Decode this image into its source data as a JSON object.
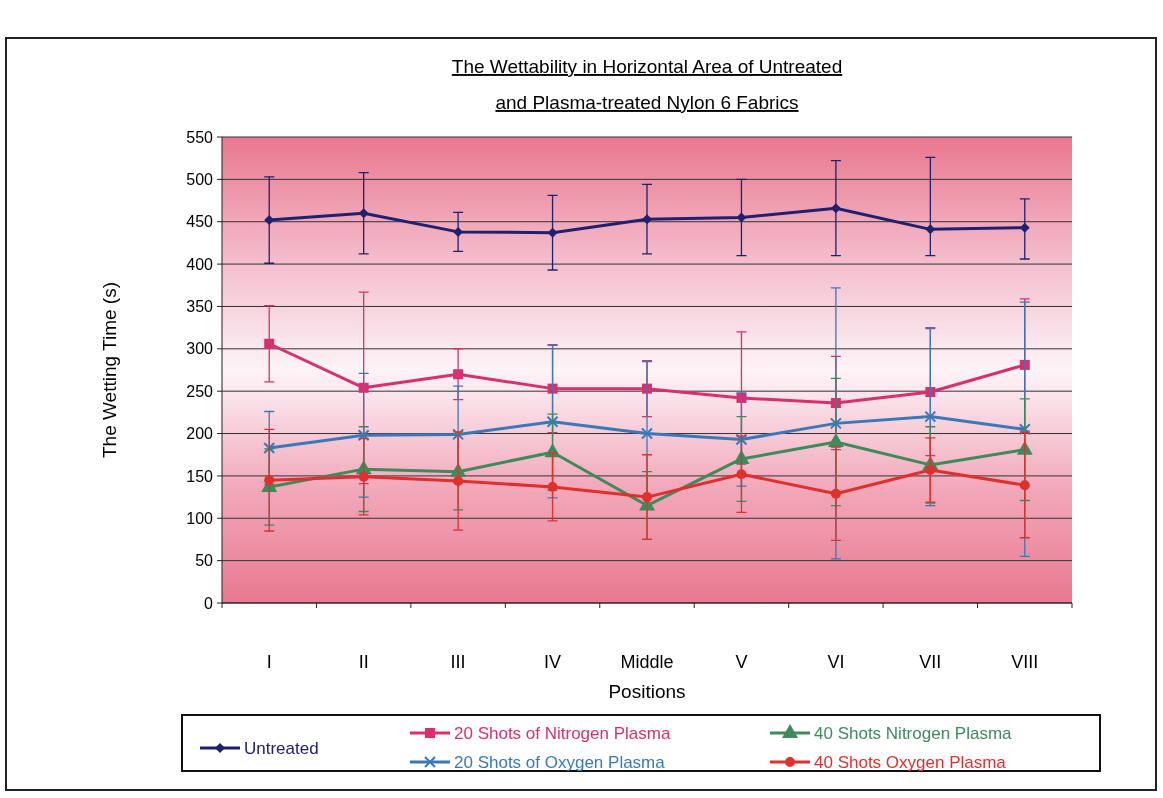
{
  "chart_data": {
    "type": "line",
    "title": "The Wettability in Horizontal Area of Untreated and Plasma-treated Nylon 6 Fabrics",
    "xlabel": "Positions",
    "ylabel": "The Wetting Time (s)",
    "categories": [
      "I",
      "II",
      "III",
      "IV",
      "Middle",
      "V",
      "VI",
      "VII",
      "VIII"
    ],
    "ylim": [
      0,
      550
    ],
    "yticks": [
      0,
      50,
      100,
      150,
      200,
      250,
      300,
      350,
      400,
      450,
      500,
      550
    ],
    "grid": "y",
    "legend": "bottom",
    "series": [
      {
        "name": "Untreated",
        "color": "#1f2070",
        "marker": "diamond",
        "values": [
          452,
          460,
          438,
          437,
          453,
          455,
          466,
          441,
          443
        ],
        "errors": [
          51,
          48,
          23,
          44,
          41,
          45,
          56,
          [
            410,
            526
          ],
          [
            406,
            477
          ]
        ]
      },
      {
        "name": "20 Shots of Nitrogen Plasma",
        "color": "#d8306e",
        "marker": "square",
        "values": [
          306,
          254,
          270,
          253,
          253,
          242,
          236,
          249,
          281
        ],
        "errors": [
          45,
          113,
          30,
          52,
          33,
          78,
          55,
          75,
          78
        ]
      },
      {
        "name": "20 Shots of Oxygen Plasma",
        "color": "#3a78b8",
        "marker": "cross",
        "values": [
          183,
          198,
          199,
          214,
          200,
          193,
          212,
          220,
          205
        ],
        "errors": [
          43,
          73,
          57,
          90,
          85,
          55,
          160,
          105,
          150
        ]
      },
      {
        "name": "40 Shots Nitrogen Plasma",
        "color": "#3f8a5a",
        "marker": "triangle",
        "values": [
          137,
          158,
          155,
          178,
          115,
          170,
          190,
          163,
          181
        ],
        "errors": [
          45,
          50,
          45,
          45,
          40,
          50,
          75,
          45,
          60
        ]
      },
      {
        "name": "40 Shots Oxygen Plasma",
        "color": "#e0302e",
        "marker": "circle",
        "values": [
          145,
          149,
          144,
          137,
          125,
          152,
          129,
          157,
          139
        ],
        "errors": [
          60,
          45,
          58,
          40,
          50,
          45,
          55,
          38,
          62
        ]
      }
    ]
  }
}
